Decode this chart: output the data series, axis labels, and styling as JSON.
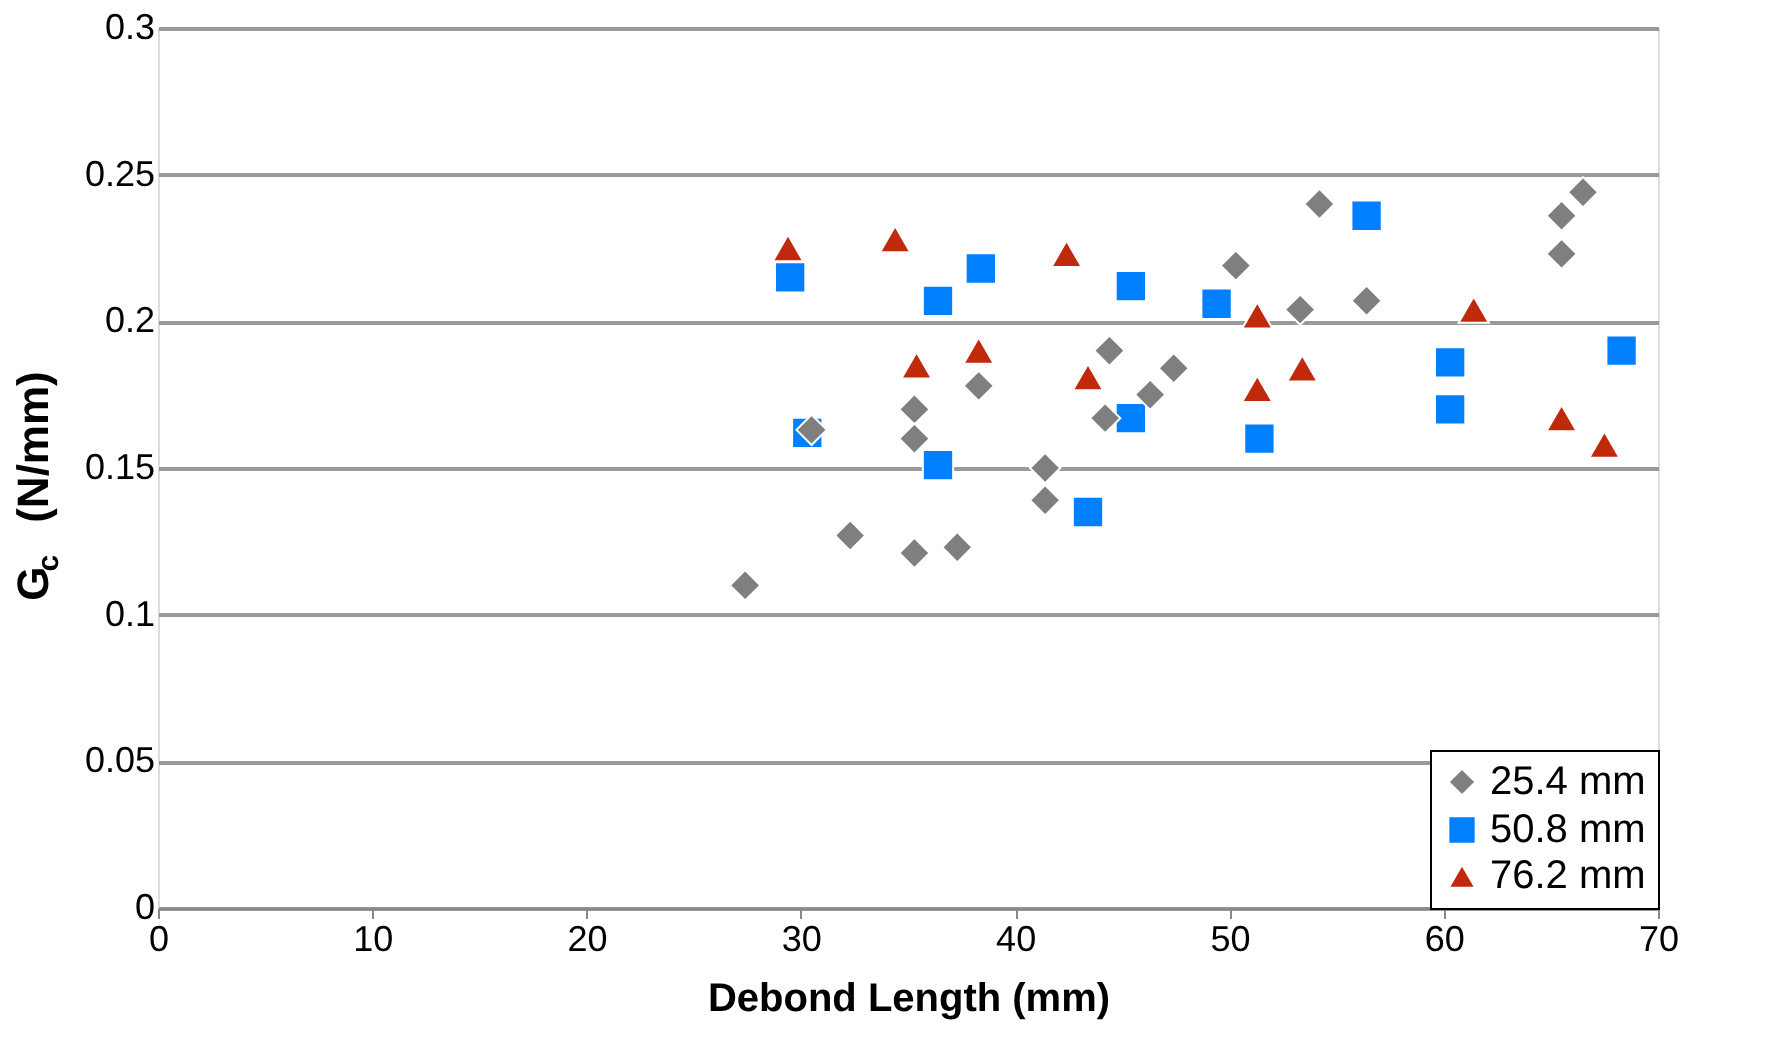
{
  "chart_data": {
    "type": "scatter",
    "xlabel": "Debond Length (mm)",
    "ylabel": "G$_{c}$ (N/mm)",
    "xlim": [
      0,
      70
    ],
    "xticks": [
      0,
      10,
      20,
      30,
      40,
      50,
      60,
      70
    ],
    "ylim": [
      0,
      0.3
    ],
    "yticks": [
      0,
      0.05,
      0.1,
      0.15,
      0.2,
      0.25,
      0.3
    ],
    "grid": "y",
    "legend": "bottom right",
    "series": [
      {
        "name": "25.4 mm",
        "color": "#7f7f7f",
        "marker": "diamond",
        "x": [
          27.4,
          30.5,
          32.3,
          35.3,
          35.3,
          35.3,
          37.3,
          38.3,
          41.4,
          41.4,
          44.4,
          44.2,
          46.3,
          47.4,
          50.3,
          53.3,
          56.4,
          54.2,
          66.5,
          65.5,
          65.5
        ],
        "values": [
          0.11,
          0.163,
          0.127,
          0.121,
          0.17,
          0.16,
          0.123,
          0.178,
          0.139,
          0.15,
          0.19,
          0.167,
          0.175,
          0.184,
          0.219,
          0.204,
          0.207,
          0.24,
          0.244,
          0.236,
          0.223
        ]
      },
      {
        "name": "50.8 mm",
        "color": "#0080ff",
        "marker": "square",
        "x": [
          29.5,
          30.3,
          36.4,
          38.4,
          36.4,
          43.4,
          45.4,
          45.4,
          49.4,
          51.4,
          56.4,
          60.3,
          60.3,
          68.3
        ],
        "values": [
          0.215,
          0.162,
          0.207,
          0.218,
          0.151,
          0.135,
          0.212,
          0.167,
          0.206,
          0.16,
          0.236,
          0.186,
          0.17,
          0.19
        ]
      },
      {
        "name": "76.2 mm",
        "color": "#c0290b",
        "marker": "triangle",
        "x": [
          29.4,
          34.4,
          35.4,
          38.3,
          42.4,
          43.4,
          51.3,
          51.3,
          53.4,
          61.4,
          65.5,
          67.5
        ],
        "values": [
          0.225,
          0.228,
          0.185,
          0.19,
          0.223,
          0.181,
          0.202,
          0.177,
          0.184,
          0.204,
          0.167,
          0.158
        ]
      }
    ]
  }
}
